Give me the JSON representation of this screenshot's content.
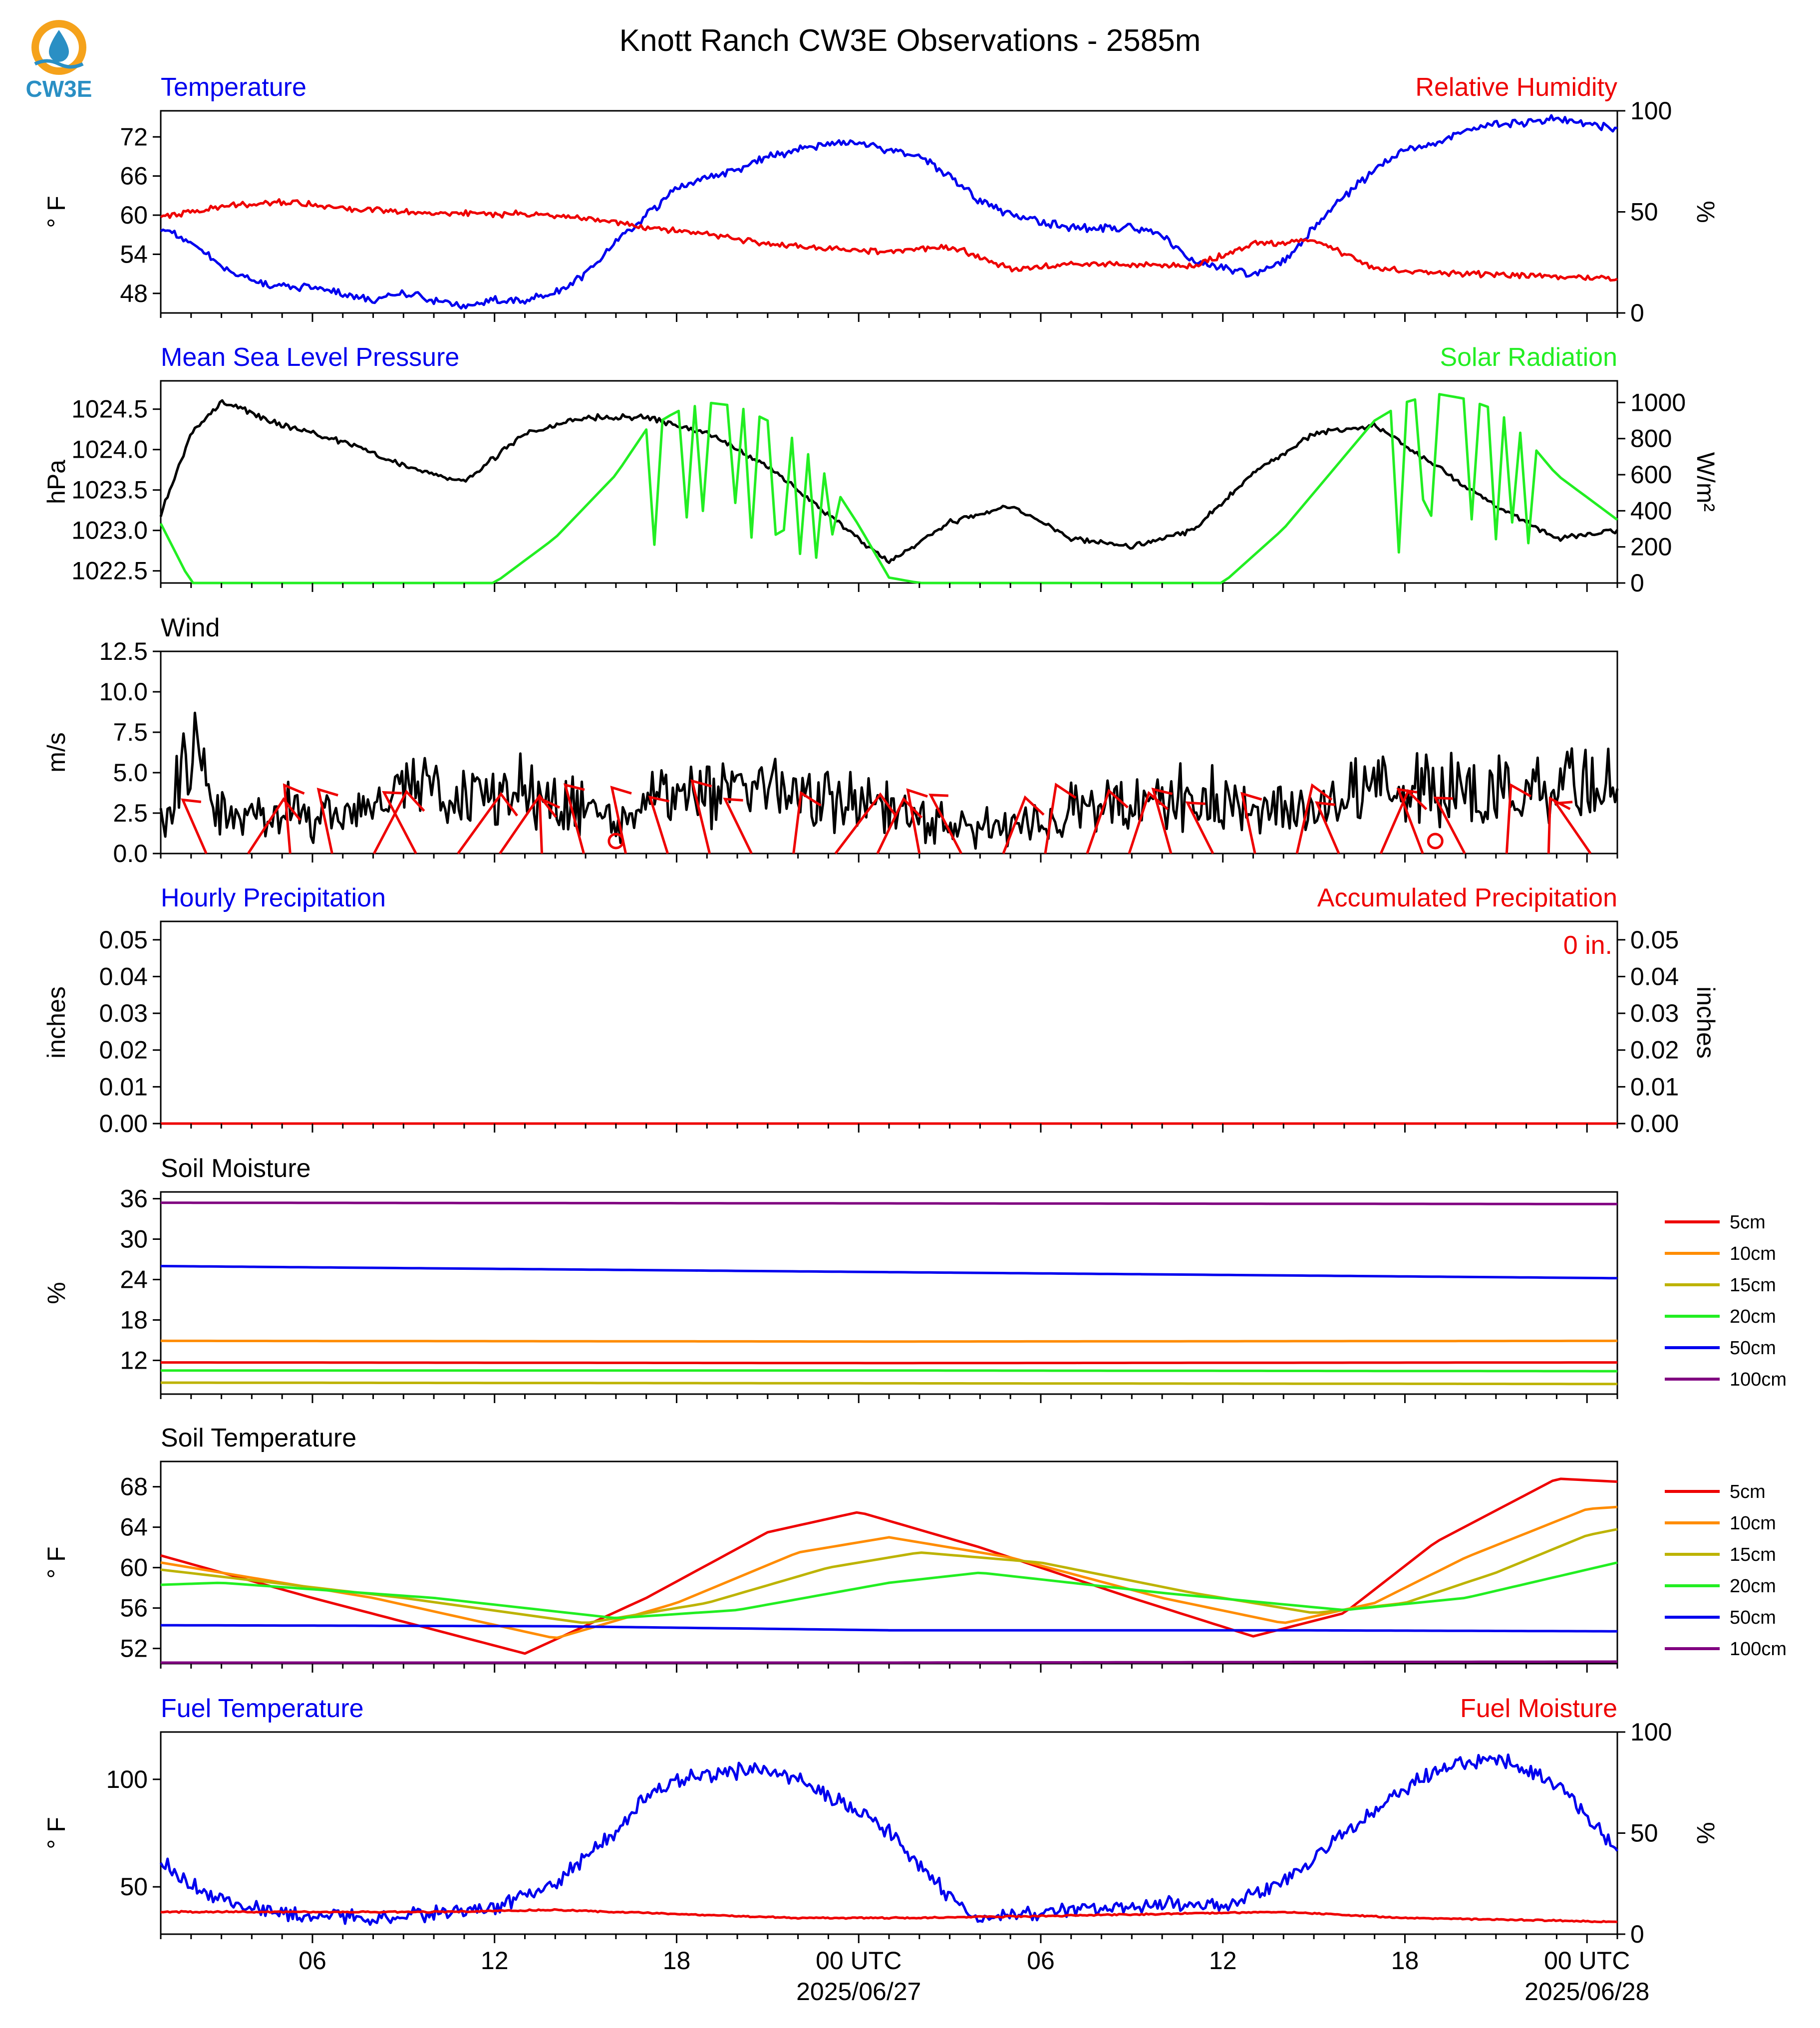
{
  "title": "Knott Ranch CW3E Observations - 2585m",
  "logo": {
    "text": "CW3E",
    "icon": "cw3e-sun-water-logo",
    "colors": {
      "sun": "#f5a21b",
      "water": "#2a8fc4"
    }
  },
  "colors": {
    "blue": "#0000ee",
    "red": "#ee0000",
    "green": "#22ee22",
    "black": "#000000",
    "orange": "#ff8c00",
    "olive": "#bdb300",
    "purple": "#800080"
  },
  "time_axis": {
    "start": "2025-06-26 01:00 UTC",
    "end": "2025-06-28 01:00 UTC",
    "tick_labels": [
      "06",
      "12",
      "18",
      "00 UTC",
      "06",
      "12",
      "18",
      "00 UTC"
    ],
    "date_labels": [
      "2025/06/27",
      "2025/06/28"
    ]
  },
  "chart_data": [
    {
      "type": "line",
      "title_left": "Temperature",
      "title_right": "Relative Humidity",
      "ylabel_left": "° F",
      "ylabel_right": "%",
      "ylim_left": [
        45,
        76
      ],
      "ylim_right": [
        0,
        100
      ],
      "yticks_left": [
        "72",
        "66",
        "60",
        "54",
        "48"
      ],
      "yticks_right": [
        "100",
        "50",
        "0"
      ],
      "series": [
        {
          "name": "Temperature",
          "axis": "left",
          "color": "#0000ee",
          "x": [
            "06-26 01:00",
            "06-26 02:00",
            "06-26 03:00",
            "06-26 04:00",
            "06-26 05:00",
            "06-26 06:00",
            "06-26 07:00",
            "06-26 08:00",
            "06-26 09:00",
            "06-26 10:00",
            "06-26 11:00",
            "06-26 12:00",
            "06-26 13:00",
            "06-26 14:00",
            "06-26 15:00",
            "06-26 16:00",
            "06-26 17:00",
            "06-26 18:00",
            "06-26 19:00",
            "06-26 20:00",
            "06-26 21:00",
            "06-26 22:00",
            "06-26 23:00",
            "06-27 00:00",
            "06-27 01:00",
            "06-27 02:00",
            "06-27 03:00",
            "06-27 04:00",
            "06-27 05:00",
            "06-27 06:00",
            "06-27 07:00",
            "06-27 08:00",
            "06-27 09:00",
            "06-27 10:00",
            "06-27 11:00",
            "06-27 12:00",
            "06-27 13:00",
            "06-27 14:00",
            "06-27 15:00",
            "06-27 16:00",
            "06-27 17:00",
            "06-27 18:00",
            "06-27 19:00",
            "06-27 20:00",
            "06-27 21:00",
            "06-27 22:00",
            "06-27 23:00",
            "06-28 00:00",
            "06-28 01:00"
          ],
          "values": [
            58,
            56,
            52,
            50,
            49,
            49,
            48,
            47,
            48,
            47,
            46,
            47,
            47,
            48,
            51,
            56,
            60,
            64,
            66,
            67,
            69,
            70,
            71,
            71,
            70,
            69,
            66,
            62,
            60,
            59,
            58,
            58,
            58,
            57,
            53,
            52,
            51,
            53,
            58,
            63,
            67,
            70,
            71,
            73,
            74,
            74,
            75,
            74,
            73
          ]
        },
        {
          "name": "Relative Humidity",
          "axis": "right",
          "color": "#ee0000",
          "x": [
            "06-26 01:00",
            "06-26 03:00",
            "06-26 05:00",
            "06-26 07:00",
            "06-26 09:00",
            "06-26 11:00",
            "06-26 13:00",
            "06-26 15:00",
            "06-26 17:00",
            "06-26 19:00",
            "06-26 21:00",
            "06-26 23:00",
            "06-27 01:00",
            "06-27 03:00",
            "06-27 05:00",
            "06-27 07:00",
            "06-27 09:00",
            "06-27 11:00",
            "06-27 13:00",
            "06-27 15:00",
            "06-27 17:00",
            "06-27 19:00",
            "06-27 21:00",
            "06-27 23:00",
            "06-28 01:00"
          ],
          "values": [
            47,
            53,
            55,
            52,
            50,
            49,
            49,
            47,
            42,
            39,
            34,
            32,
            30,
            33,
            22,
            24,
            24,
            23,
            34,
            36,
            22,
            20,
            19,
            18,
            17
          ]
        }
      ]
    },
    {
      "type": "line",
      "title_left": "Mean Sea Level Pressure",
      "title_right": "Solar Radiation",
      "ylabel_left": "hPa",
      "ylabel_right": "W/m²",
      "ylim_left": [
        1022.35,
        1024.85
      ],
      "ylim_right": [
        0,
        1120
      ],
      "yticks_left": [
        "1024.5",
        "1024.0",
        "1023.5",
        "1023.0",
        "1022.5"
      ],
      "yticks_right": [
        "1000",
        "800",
        "600",
        "400",
        "200",
        "0"
      ],
      "series": [
        {
          "name": "Mean Sea Level Pressure",
          "axis": "left",
          "color": "#000000",
          "x": [
            "06-26 01:00",
            "06-26 02:00",
            "06-26 03:00",
            "06-26 05:00",
            "06-26 07:00",
            "06-26 09:00",
            "06-26 11:00",
            "06-26 13:00",
            "06-26 15:00",
            "06-26 17:00",
            "06-26 19:00",
            "06-26 21:00",
            "06-26 23:00",
            "06-27 01:00",
            "06-27 03:00",
            "06-27 05:00",
            "06-27 07:00",
            "06-27 09:00",
            "06-27 11:00",
            "06-27 13:00",
            "06-27 15:00",
            "06-27 17:00",
            "06-27 19:00",
            "06-27 21:00",
            "06-27 23:00",
            "06-28 01:00"
          ],
          "values": [
            1023.2,
            1024.2,
            1024.6,
            1024.3,
            1024.1,
            1023.8,
            1023.6,
            1024.2,
            1024.4,
            1024.4,
            1024.2,
            1023.8,
            1023.2,
            1022.6,
            1023.1,
            1023.3,
            1022.9,
            1022.8,
            1023.0,
            1023.7,
            1024.2,
            1024.3,
            1023.8,
            1023.3,
            1022.9,
            1023.0
          ]
        },
        {
          "name": "Solar Radiation",
          "axis": "right",
          "color": "#22ee22",
          "x": [
            "06-26 01:00",
            "06-26 02:00",
            "06-26 12:00",
            "06-26 14:00",
            "06-26 16:00",
            "06-26 17:00",
            "06-26 18:00",
            "06-26 19:00",
            "06-26 20:00",
            "06-26 21:00",
            "06-26 22:00",
            "06-26 23:00",
            "06-27 00:00",
            "06-27 01:00",
            "06-27 02:00",
            "06-27 12:00",
            "06-27 14:00",
            "06-27 16:00",
            "06-27 17:00",
            "06-27 18:00",
            "06-27 19:00",
            "06-27 20:00",
            "06-27 21:00",
            "06-27 22:00",
            "06-27 23:00",
            "06-28 01:00"
          ],
          "values": [
            330,
            0,
            0,
            250,
            600,
            850,
            950,
            1000,
            980,
            900,
            780,
            580,
            320,
            30,
            0,
            0,
            300,
            700,
            900,
            1000,
            1050,
            1020,
            960,
            800,
            600,
            350
          ]
        }
      ]
    },
    {
      "type": "line",
      "title_left": "Wind",
      "ylabel_left": "m/s",
      "ylim_left": [
        0,
        12.5
      ],
      "yticks_left": [
        "12.5",
        "10.0",
        "7.5",
        "5.0",
        "2.5",
        "0.0"
      ],
      "series": [
        {
          "name": "Wind",
          "axis": "left",
          "color": "#000000",
          "x": [
            "06-26 01:00",
            "06-26 02:00",
            "06-26 03:00",
            "06-26 05:00",
            "06-26 07:00",
            "06-26 09:00",
            "06-26 11:00",
            "06-26 13:00",
            "06-26 15:00",
            "06-26 16:00",
            "06-26 17:00",
            "06-26 19:00",
            "06-26 21:00",
            "06-26 23:00",
            "06-27 01:00",
            "06-27 03:00",
            "06-27 05:00",
            "06-27 07:00",
            "06-27 09:00",
            "06-27 11:00",
            "06-27 13:00",
            "06-27 15:00",
            "06-27 17:00",
            "06-27 19:00",
            "06-27 21:00",
            "06-27 23:00",
            "06-28 01:00"
          ],
          "values": [
            2.0,
            7.0,
            2.5,
            2.6,
            2.3,
            3.8,
            3.5,
            4.0,
            3.0,
            1.8,
            3.0,
            3.5,
            3.8,
            3.2,
            2.8,
            1.5,
            1.8,
            2.6,
            3.0,
            3.5,
            3.2,
            2.6,
            4.2,
            4.0,
            3.8,
            4.2,
            4.0
          ]
        }
      ],
      "barbs": {
        "color": "#ee0000",
        "calm_markers": [
          "06-26 16:00",
          "06-27 19:00"
        ]
      }
    },
    {
      "type": "line",
      "title_left": "Hourly Precipitation",
      "title_right": "Accumulated Precipitation",
      "ylabel_left": "inches",
      "ylabel_right": "inches",
      "ylim_left": [
        0,
        0.055
      ],
      "ylim_right": [
        0,
        0.055
      ],
      "yticks_left": [
        "0.05",
        "0.04",
        "0.03",
        "0.02",
        "0.01",
        "0.00"
      ],
      "yticks_right": [
        "0.05",
        "0.04",
        "0.03",
        "0.02",
        "0.01",
        "0.00"
      ],
      "annotation": "0 in.",
      "series": [
        {
          "name": "Hourly Precipitation",
          "axis": "left",
          "color": "#0000ee",
          "x": [
            "06-26 01:00",
            "06-28 01:00"
          ],
          "values": [
            0,
            0
          ]
        },
        {
          "name": "Accumulated Precipitation",
          "axis": "right",
          "color": "#ee0000",
          "x": [
            "06-26 01:00",
            "06-28 01:00"
          ],
          "values": [
            0,
            0
          ]
        }
      ]
    },
    {
      "type": "line",
      "title_left": "Soil Moisture",
      "ylabel_left": "%",
      "ylim_left": [
        7,
        37
      ],
      "yticks_left": [
        "36",
        "30",
        "24",
        "18",
        "12"
      ],
      "legend": [
        "5cm",
        "10cm",
        "15cm",
        "20cm",
        "50cm",
        "100cm"
      ],
      "series": [
        {
          "name": "5cm",
          "color": "#ee0000",
          "x": [
            "06-26 01:00",
            "06-27 01:00",
            "06-28 01:00"
          ],
          "values": [
            11.7,
            11.6,
            11.7
          ]
        },
        {
          "name": "10cm",
          "color": "#ff8c00",
          "x": [
            "06-26 01:00",
            "06-27 01:00",
            "06-28 01:00"
          ],
          "values": [
            14.9,
            14.8,
            14.9
          ]
        },
        {
          "name": "15cm",
          "color": "#bdb300",
          "x": [
            "06-26 01:00",
            "06-27 01:00",
            "06-28 01:00"
          ],
          "values": [
            8.7,
            8.6,
            8.5
          ]
        },
        {
          "name": "20cm",
          "color": "#22ee22",
          "x": [
            "06-26 01:00",
            "06-27 01:00",
            "06-28 01:00"
          ],
          "values": [
            10.5,
            10.5,
            10.4
          ]
        },
        {
          "name": "50cm",
          "color": "#0000ee",
          "x": [
            "06-26 01:00",
            "06-27 01:00",
            "06-28 01:00"
          ],
          "values": [
            26.0,
            25.1,
            24.2
          ]
        },
        {
          "name": "100cm",
          "color": "#800080",
          "x": [
            "06-26 01:00",
            "06-27 01:00",
            "06-28 01:00"
          ],
          "values": [
            35.4,
            35.3,
            35.2
          ]
        }
      ]
    },
    {
      "type": "line",
      "title_left": "Soil Temperature",
      "ylabel_left": "° F",
      "ylim_left": [
        50.5,
        70.5
      ],
      "yticks_left": [
        "68",
        "64",
        "60",
        "56",
        "52"
      ],
      "legend": [
        "5cm",
        "10cm",
        "15cm",
        "20cm",
        "50cm",
        "100cm"
      ],
      "series": [
        {
          "name": "5cm",
          "color": "#ee0000",
          "x": [
            "06-26 01:00",
            "06-26 06:00",
            "06-26 13:00",
            "06-26 17:00",
            "06-26 21:00",
            "06-27 00:00",
            "06-27 04:00",
            "06-27 09:00",
            "06-27 13:00",
            "06-27 16:00",
            "06-27 19:00",
            "06-27 23:00",
            "06-28 01:00"
          ],
          "values": [
            61.2,
            57.0,
            51.5,
            57.0,
            63.5,
            65.5,
            62.0,
            57.0,
            53.2,
            55.5,
            62.5,
            68.8,
            68.5
          ]
        },
        {
          "name": "10cm",
          "color": "#ff8c00",
          "x": [
            "06-26 01:00",
            "06-26 08:00",
            "06-26 14:00",
            "06-26 18:00",
            "06-26 22:00",
            "06-27 01:00",
            "06-27 05:00",
            "06-27 10:00",
            "06-27 14:00",
            "06-27 17:00",
            "06-27 20:00",
            "06-28 00:00",
            "06-28 01:00"
          ],
          "values": [
            60.5,
            57.0,
            53.0,
            56.5,
            61.5,
            63.0,
            61.0,
            57.0,
            54.5,
            56.5,
            61.0,
            65.8,
            66.0
          ]
        },
        {
          "name": "15cm",
          "color": "#bdb300",
          "x": [
            "06-26 01:00",
            "06-26 09:00",
            "06-26 15:00",
            "06-26 19:00",
            "06-26 23:00",
            "06-27 02:00",
            "06-27 06:00",
            "06-27 11:00",
            "06-27 15:00",
            "06-27 18:00",
            "06-27 21:00",
            "06-28 00:00",
            "06-28 01:00"
          ],
          "values": [
            59.8,
            57.0,
            54.5,
            56.5,
            60.0,
            61.5,
            60.5,
            57.5,
            55.5,
            56.5,
            59.5,
            63.2,
            63.8
          ]
        },
        {
          "name": "20cm",
          "color": "#22ee22",
          "x": [
            "06-26 01:00",
            "06-26 03:00",
            "06-26 10:00",
            "06-26 16:00",
            "06-26 20:00",
            "06-27 01:00",
            "06-27 04:00",
            "06-27 10:00",
            "06-27 16:00",
            "06-27 20:00",
            "06-28 01:00"
          ],
          "values": [
            58.3,
            58.5,
            57.0,
            55.0,
            55.8,
            58.5,
            59.5,
            57.5,
            55.8,
            57.0,
            60.5
          ]
        },
        {
          "name": "50cm",
          "color": "#0000ee",
          "x": [
            "06-26 01:00",
            "06-26 14:00",
            "06-27 01:00",
            "06-27 14:00",
            "06-28 01:00"
          ],
          "values": [
            54.3,
            54.2,
            53.8,
            53.8,
            53.7
          ]
        },
        {
          "name": "100cm",
          "color": "#800080",
          "x": [
            "06-26 01:00",
            "06-27 01:00",
            "06-28 01:00"
          ],
          "values": [
            50.6,
            50.6,
            50.7
          ]
        }
      ]
    },
    {
      "type": "line",
      "title_left": "Fuel Temperature",
      "title_right": "Fuel Moisture",
      "ylabel_left": "° F",
      "ylabel_right": "%",
      "ylim_left": [
        28,
        122
      ],
      "ylim_right": [
        0,
        100
      ],
      "yticks_left": [
        "100",
        "50"
      ],
      "yticks_right": [
        "100",
        "50",
        "0"
      ],
      "series": [
        {
          "name": "Fuel Temperature",
          "axis": "left",
          "color": "#0000ee",
          "x": [
            "06-26 01:00",
            "06-26 02:00",
            "06-26 04:00",
            "06-26 06:00",
            "06-26 08:00",
            "06-26 10:00",
            "06-26 12:00",
            "06-26 14:00",
            "06-26 16:00",
            "06-26 17:00",
            "06-26 18:00",
            "06-26 19:00",
            "06-26 20:00",
            "06-26 21:00",
            "06-26 22:00",
            "06-26 23:00",
            "06-27 00:00",
            "06-27 01:00",
            "06-27 02:00",
            "06-27 03:00",
            "06-27 04:00",
            "06-27 06:00",
            "06-27 08:00",
            "06-27 10:00",
            "06-27 12:00",
            "06-27 14:00",
            "06-27 16:00",
            "06-27 17:00",
            "06-27 18:00",
            "06-27 19:00",
            "06-27 20:00",
            "06-27 21:00",
            "06-27 22:00",
            "06-27 23:00",
            "06-28 00:00",
            "06-28 01:00"
          ],
          "values": [
            62,
            50,
            40,
            37,
            36,
            38,
            40,
            52,
            75,
            92,
            100,
            102,
            104,
            104,
            100,
            92,
            86,
            75,
            60,
            45,
            35,
            38,
            40,
            42,
            42,
            52,
            75,
            86,
            95,
            104,
            108,
            110,
            104,
            98,
            82,
            68
          ]
        },
        {
          "name": "Fuel Moisture",
          "axis": "right",
          "color": "#ee0000",
          "x": [
            "06-26 01:00",
            "06-26 10:00",
            "06-26 14:00",
            "06-26 18:00",
            "06-26 22:00",
            "06-27 02:00",
            "06-27 06:00",
            "06-27 10:00",
            "06-27 14:00",
            "06-27 18:00",
            "06-27 22:00",
            "06-28 01:00"
          ],
          "values": [
            11,
            11,
            12,
            10,
            8,
            8,
            9,
            10,
            11,
            8,
            7,
            6
          ]
        }
      ]
    }
  ]
}
